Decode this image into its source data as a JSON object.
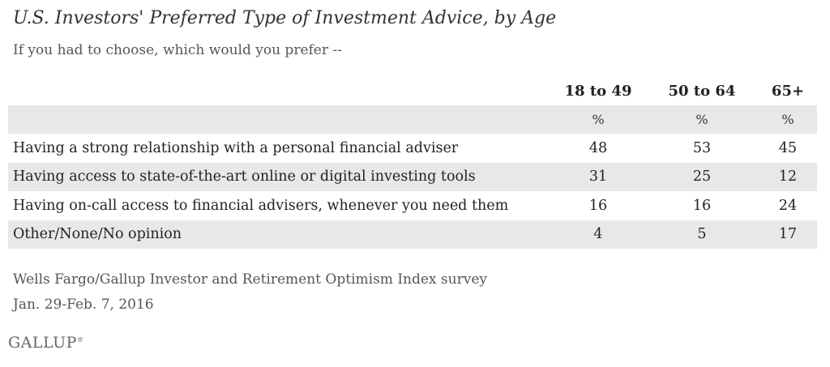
{
  "title": "U.S. Investors' Preferred Type of Investment Advice, by Age",
  "subtitle": "If you had to choose, which would you prefer --",
  "chart_data": {
    "type": "table",
    "title": "U.S. Investors' Preferred Type of Investment Advice, by Age",
    "subtitle": "If you had to choose, which would you prefer --",
    "columns": [
      "18 to 49",
      "50 to 64",
      "65+"
    ],
    "units": [
      "%",
      "%",
      "%"
    ],
    "rows": [
      {
        "label": "Having a strong relationship with a personal financial adviser",
        "values": [
          "48",
          "53",
          "45"
        ]
      },
      {
        "label": "Having access to state-of-the-art online or digital investing tools",
        "values": [
          "31",
          "25",
          "12"
        ]
      },
      {
        "label": "Having on-call access to financial advisers, whenever you need them",
        "values": [
          "16",
          "16",
          "24"
        ]
      },
      {
        "label": "Other/None/No opinion",
        "values": [
          "4",
          "5",
          "17"
        ]
      }
    ]
  },
  "source": {
    "line1": "Wells Fargo/Gallup Investor and Retirement Optimism Index survey",
    "line2": "Jan. 29-Feb. 7, 2016"
  },
  "logo": "GALLUP"
}
